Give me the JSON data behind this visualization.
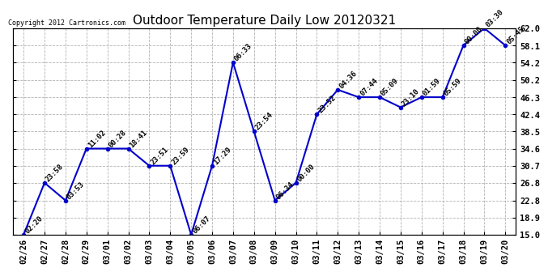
{
  "title": "Outdoor Temperature Daily Low 20120321",
  "copyright": "Copyright 2012 Cartronics.com",
  "x_labels": [
    "02/26",
    "02/27",
    "02/28",
    "02/29",
    "03/01",
    "03/02",
    "03/03",
    "03/04",
    "03/05",
    "03/06",
    "03/07",
    "03/08",
    "03/09",
    "03/10",
    "03/11",
    "03/12",
    "03/13",
    "03/14",
    "03/15",
    "03/16",
    "03/17",
    "03/18",
    "03/19",
    "03/20"
  ],
  "y_values": [
    15.0,
    26.8,
    22.8,
    34.6,
    34.6,
    34.6,
    30.7,
    30.7,
    15.0,
    30.7,
    54.2,
    38.5,
    22.8,
    26.8,
    42.4,
    48.0,
    46.3,
    46.3,
    44.0,
    46.3,
    46.3,
    58.1,
    62.0,
    58.1
  ],
  "annotations": [
    "02:20",
    "23:58",
    "03:53",
    "11:02",
    "00:28",
    "18:41",
    "23:51",
    "23:59",
    "06:07",
    "17:29",
    "06:33",
    "23:54",
    "06:34",
    "00:00",
    "23:52",
    "04:36",
    "07:44",
    "05:09",
    "23:10",
    "01:59",
    "05:59",
    "00:00",
    "03:30",
    "05:45"
  ],
  "ylim": [
    15.0,
    62.0
  ],
  "yticks": [
    15.0,
    18.9,
    22.8,
    26.8,
    30.7,
    34.6,
    38.5,
    42.4,
    46.3,
    50.2,
    54.2,
    58.1,
    62.0
  ],
  "line_color": "#0000CC",
  "marker_color": "#0000CC",
  "bg_color": "#FFFFFF",
  "grid_color": "#AAAAAA",
  "title_fontsize": 11,
  "annotation_fontsize": 6.5,
  "tick_fontsize": 7.5,
  "copyright_fontsize": 6.0
}
